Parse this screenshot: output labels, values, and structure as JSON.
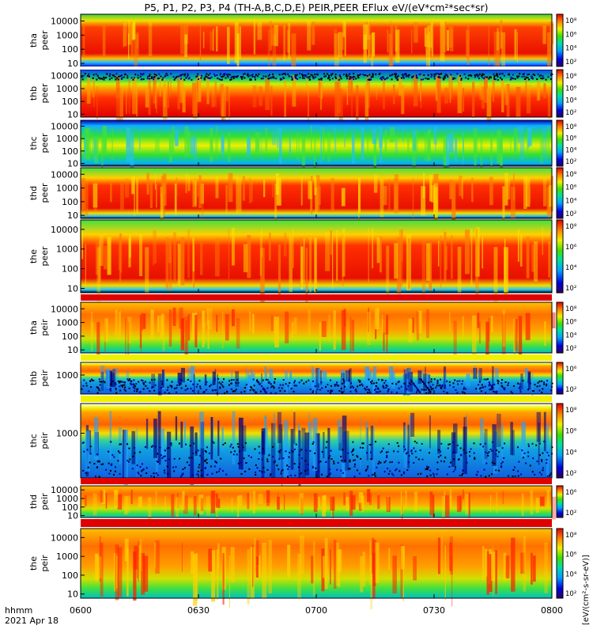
{
  "chart_data": {
    "type": "heatmap",
    "title": "P5, P1, P2, P3, P4 (TH-A,B,C,D,E) PEIR,PEER EFlux eV/(eV*cm²*sec*sr)",
    "x_ticks": [
      "0600",
      "0630",
      "0700",
      "0730",
      "0800"
    ],
    "x_range_minutes": [
      360,
      480
    ],
    "x_caption_line1": "hhmm",
    "x_caption_line2": "2021 Apr 18",
    "colorbar": {
      "label": "[eV/(cm²-s-sr-eV)]",
      "scale": "log",
      "tick_values": [
        "10⁸",
        "10⁶",
        "10⁴",
        "10²"
      ]
    },
    "panels": [
      {
        "probe": "tha",
        "label_top": "tha",
        "label_bottom": "peer",
        "y_ticks": [
          "10000",
          "1000",
          "100",
          "10"
        ],
        "scale": "log",
        "ylim": [
          6,
          30000
        ]
      },
      {
        "probe": "thb",
        "label_top": "thb",
        "label_bottom": "peer",
        "y_ticks": [
          "10000",
          "1000",
          "100",
          "10"
        ],
        "scale": "log",
        "ylim": [
          6,
          30000
        ]
      },
      {
        "probe": "thc",
        "label_top": "thc",
        "label_bottom": "peer",
        "y_ticks": [
          "10000",
          "1000",
          "100",
          "10"
        ],
        "scale": "log",
        "ylim": [
          6,
          30000
        ]
      },
      {
        "probe": "thd",
        "label_top": "thd",
        "label_bottom": "peer",
        "y_ticks": [
          "10000",
          "1000",
          "100",
          "10"
        ],
        "scale": "log",
        "ylim": [
          6,
          30000
        ]
      },
      {
        "probe": "the",
        "label_top": "the",
        "label_bottom": "peer",
        "y_ticks": [
          "10000",
          "1000",
          "100",
          "10"
        ],
        "scale": "log",
        "ylim": [
          6,
          30000
        ]
      },
      {
        "probe": "tha",
        "label_top": "tha",
        "label_bottom": "peir",
        "y_ticks": [
          "10000",
          "1000",
          "100",
          "10"
        ],
        "scale": "log",
        "ylim": [
          6,
          30000
        ]
      },
      {
        "probe": "thb",
        "label_top": "thb",
        "label_bottom": "peir",
        "y_ticks": [
          "1000"
        ],
        "scale": "log",
        "ylim": [
          6,
          30000
        ]
      },
      {
        "probe": "thc",
        "label_top": "thc",
        "label_bottom": "peir",
        "y_ticks": [
          "1000"
        ],
        "scale": "log",
        "ylim": [
          6,
          30000
        ]
      },
      {
        "probe": "thd",
        "label_top": "thd",
        "label_bottom": "peir",
        "y_ticks": [
          "10000",
          "1000",
          "100",
          "10"
        ],
        "scale": "log",
        "ylim": [
          6,
          30000
        ]
      },
      {
        "probe": "the",
        "label_top": "the",
        "label_bottom": "peir",
        "y_ticks": [
          "10000",
          "1000",
          "100",
          "10"
        ],
        "scale": "log",
        "ylim": [
          6,
          30000
        ]
      }
    ]
  }
}
